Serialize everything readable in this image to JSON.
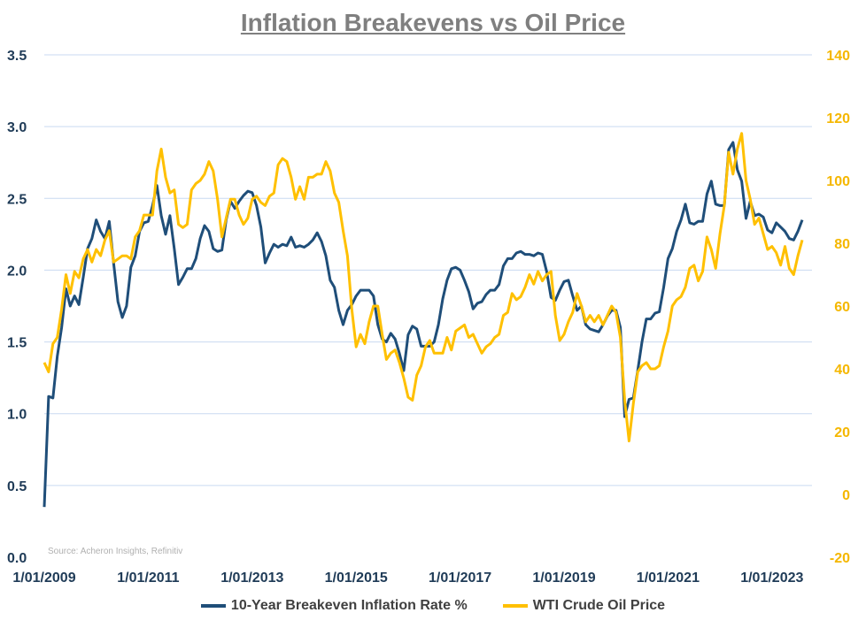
{
  "chart_data": {
    "type": "line",
    "title": "Inflation Breakevens vs Oil Price",
    "source": "Source: Acheron Insights, Refinitiv",
    "x_start": "2009-01",
    "x_frequency": "monthly",
    "x_tick_labels": [
      "1/01/2009",
      "1/01/2011",
      "1/01/2013",
      "1/01/2015",
      "1/01/2017",
      "1/01/2019",
      "1/01/2021",
      "1/01/2023"
    ],
    "y_left": {
      "ylim": [
        0,
        3.5
      ],
      "ticks": [
        "0.0",
        "0.5",
        "1.0",
        "1.5",
        "2.0",
        "2.5",
        "3.0",
        "3.5"
      ]
    },
    "y_right": {
      "ylim": [
        -20,
        140
      ],
      "ticks": [
        "-20",
        "0",
        "20",
        "40",
        "60",
        "80",
        "100",
        "120",
        "140"
      ]
    },
    "grid": true,
    "legend": "bottom",
    "series": [
      {
        "name": "10-Year Breakeven Inflation Rate %",
        "axis": "left",
        "color": "#1f4e79",
        "values": [
          0.35,
          1.12,
          1.11,
          1.4,
          1.6,
          1.87,
          1.75,
          1.82,
          1.76,
          1.95,
          2.15,
          2.22,
          2.35,
          2.27,
          2.22,
          2.34,
          2.05,
          1.78,
          1.67,
          1.75,
          2.02,
          2.1,
          2.27,
          2.33,
          2.34,
          2.45,
          2.59,
          2.38,
          2.25,
          2.38,
          2.15,
          1.9,
          1.95,
          2.01,
          2.01,
          2.08,
          2.22,
          2.31,
          2.27,
          2.15,
          2.13,
          2.14,
          2.35,
          2.48,
          2.43,
          2.48,
          2.52,
          2.55,
          2.54,
          2.45,
          2.3,
          2.05,
          2.12,
          2.18,
          2.16,
          2.18,
          2.17,
          2.23,
          2.16,
          2.17,
          2.16,
          2.18,
          2.21,
          2.26,
          2.2,
          2.1,
          1.93,
          1.88,
          1.72,
          1.62,
          1.72,
          1.76,
          1.82,
          1.86,
          1.86,
          1.86,
          1.82,
          1.62,
          1.52,
          1.5,
          1.56,
          1.52,
          1.42,
          1.3,
          1.55,
          1.61,
          1.59,
          1.47,
          1.47,
          1.47,
          1.5,
          1.62,
          1.8,
          1.93,
          2.01,
          2.02,
          2.0,
          1.93,
          1.85,
          1.73,
          1.77,
          1.78,
          1.83,
          1.86,
          1.86,
          1.9,
          2.03,
          2.08,
          2.08,
          2.12,
          2.13,
          2.11,
          2.11,
          2.1,
          2.12,
          2.11,
          1.99,
          1.81,
          1.79,
          1.86,
          1.92,
          1.93,
          1.82,
          1.72,
          1.75,
          1.62,
          1.59,
          1.58,
          1.57,
          1.62,
          1.68,
          1.72,
          1.72,
          1.6,
          0.98,
          1.1,
          1.11,
          1.3,
          1.5,
          1.66,
          1.66,
          1.7,
          1.71,
          1.88,
          2.08,
          2.15,
          2.27,
          2.35,
          2.46,
          2.33,
          2.32,
          2.34,
          2.34,
          2.53,
          2.62,
          2.46,
          2.45,
          2.45,
          2.84,
          2.89,
          2.7,
          2.62,
          2.36,
          2.48,
          2.38,
          2.39,
          2.37,
          2.28,
          2.26,
          2.33,
          2.3,
          2.27,
          2.22,
          2.21,
          2.27,
          2.35
        ]
      },
      {
        "name": "WTI Crude Oil Price",
        "axis": "right",
        "color": "#ffc000",
        "values": [
          42,
          39,
          48,
          50,
          59,
          70,
          64,
          71,
          69,
          75,
          78,
          74,
          78,
          76,
          81,
          84,
          74,
          75,
          76,
          76,
          75,
          82,
          84,
          89,
          89,
          89,
          103,
          110,
          101,
          96,
          97,
          86,
          85,
          86,
          97,
          99,
          100,
          102,
          106,
          103,
          94,
          82,
          88,
          94,
          94,
          89,
          86,
          88,
          94,
          95,
          93,
          92,
          95,
          96,
          105,
          107,
          106,
          101,
          94,
          98,
          94,
          101,
          101,
          102,
          102,
          106,
          103,
          96,
          93,
          84,
          76,
          59,
          47,
          51,
          48,
          55,
          60,
          60,
          51,
          43,
          45,
          46,
          42,
          37,
          31,
          30,
          38,
          41,
          47,
          49,
          45,
          45,
          45,
          50,
          46,
          52,
          53,
          54,
          50,
          51,
          48,
          45,
          47,
          48,
          50,
          51,
          57,
          58,
          64,
          62,
          63,
          66,
          70,
          67,
          71,
          68,
          70,
          71,
          57,
          49,
          51,
          55,
          58,
          64,
          60,
          55,
          57,
          55,
          57,
          54,
          57,
          60,
          58,
          50,
          30,
          17,
          29,
          39,
          41,
          42,
          40,
          40,
          41,
          47,
          52,
          60,
          62,
          63,
          66,
          72,
          73,
          68,
          71,
          82,
          78,
          72,
          83,
          92,
          109,
          102,
          110,
          115,
          100,
          94,
          86,
          88,
          83,
          78,
          79,
          77,
          73,
          79,
          72,
          70,
          76,
          81
        ]
      }
    ]
  }
}
